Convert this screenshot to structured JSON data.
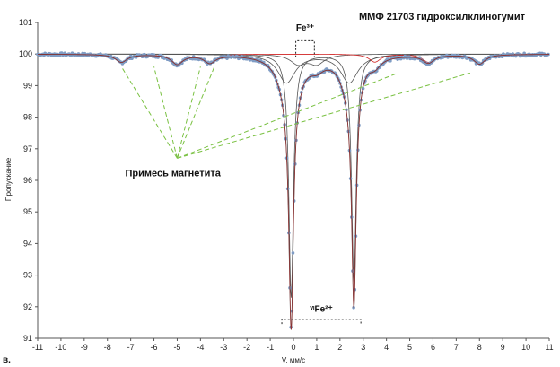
{
  "chart_data": {
    "type": "scatter",
    "title": "ММФ 21703 гидроксилклиногумит",
    "panel_label": "в.",
    "xlabel": "V, мм/с",
    "ylabel": "Пропускание",
    "xlim": [
      -11,
      11
    ],
    "ylim": [
      91,
      101
    ],
    "x_ticks": [
      -11,
      -10,
      -9,
      -8,
      -7,
      -6,
      -5,
      -4,
      -3,
      -2,
      -1,
      0,
      1,
      2,
      3,
      4,
      5,
      6,
      7,
      8,
      9,
      10,
      11
    ],
    "y_ticks": [
      91,
      92,
      93,
      94,
      95,
      96,
      97,
      98,
      99,
      100,
      101
    ],
    "grid": false,
    "legend": "none",
    "colors": {
      "points": "#7f9cc4",
      "envelope": "#444444",
      "fit": "#d02020",
      "subspectra": "#555555",
      "guides": "#7ac142"
    },
    "baseline": 100.0,
    "series": [
      {
        "role": "main-doublet",
        "peaks": [
          {
            "position": -0.1,
            "depth": 7.7,
            "width": 0.12
          },
          {
            "position": 2.6,
            "depth": 7.2,
            "width": 0.12
          }
        ]
      },
      {
        "role": "secondary-doublet",
        "peaks": [
          {
            "position": -0.3,
            "depth": 0.9,
            "width": 0.45
          },
          {
            "position": 2.4,
            "depth": 0.9,
            "width": 0.45
          }
        ]
      },
      {
        "role": "fe3-doublet",
        "peaks": [
          {
            "position": 0.2,
            "depth": 0.3,
            "width": 0.4
          },
          {
            "position": 1.0,
            "depth": 0.3,
            "width": 0.4
          }
        ]
      },
      {
        "role": "magnetite-sextet",
        "peaks": [
          {
            "position": -7.4,
            "depth": 0.25,
            "width": 0.3
          },
          {
            "position": -5.0,
            "depth": 0.3,
            "width": 0.3
          },
          {
            "position": -3.6,
            "depth": 0.25,
            "width": 0.3
          },
          {
            "position": 3.5,
            "depth": 0.25,
            "width": 0.3
          },
          {
            "position": 5.8,
            "depth": 0.25,
            "width": 0.3
          },
          {
            "position": 8.0,
            "depth": 0.3,
            "width": 0.3
          }
        ]
      }
    ],
    "annotations": {
      "magnetite": {
        "text": "Примесь магнетита",
        "x": -5.0,
        "y": 96.7
      },
      "fe3": {
        "text": "Fe³⁺",
        "x": 0.5,
        "y": 100.8
      },
      "fe2": {
        "text": "ᵛᶦFe²⁺",
        "x": 1.2,
        "y": 91.9
      }
    }
  }
}
